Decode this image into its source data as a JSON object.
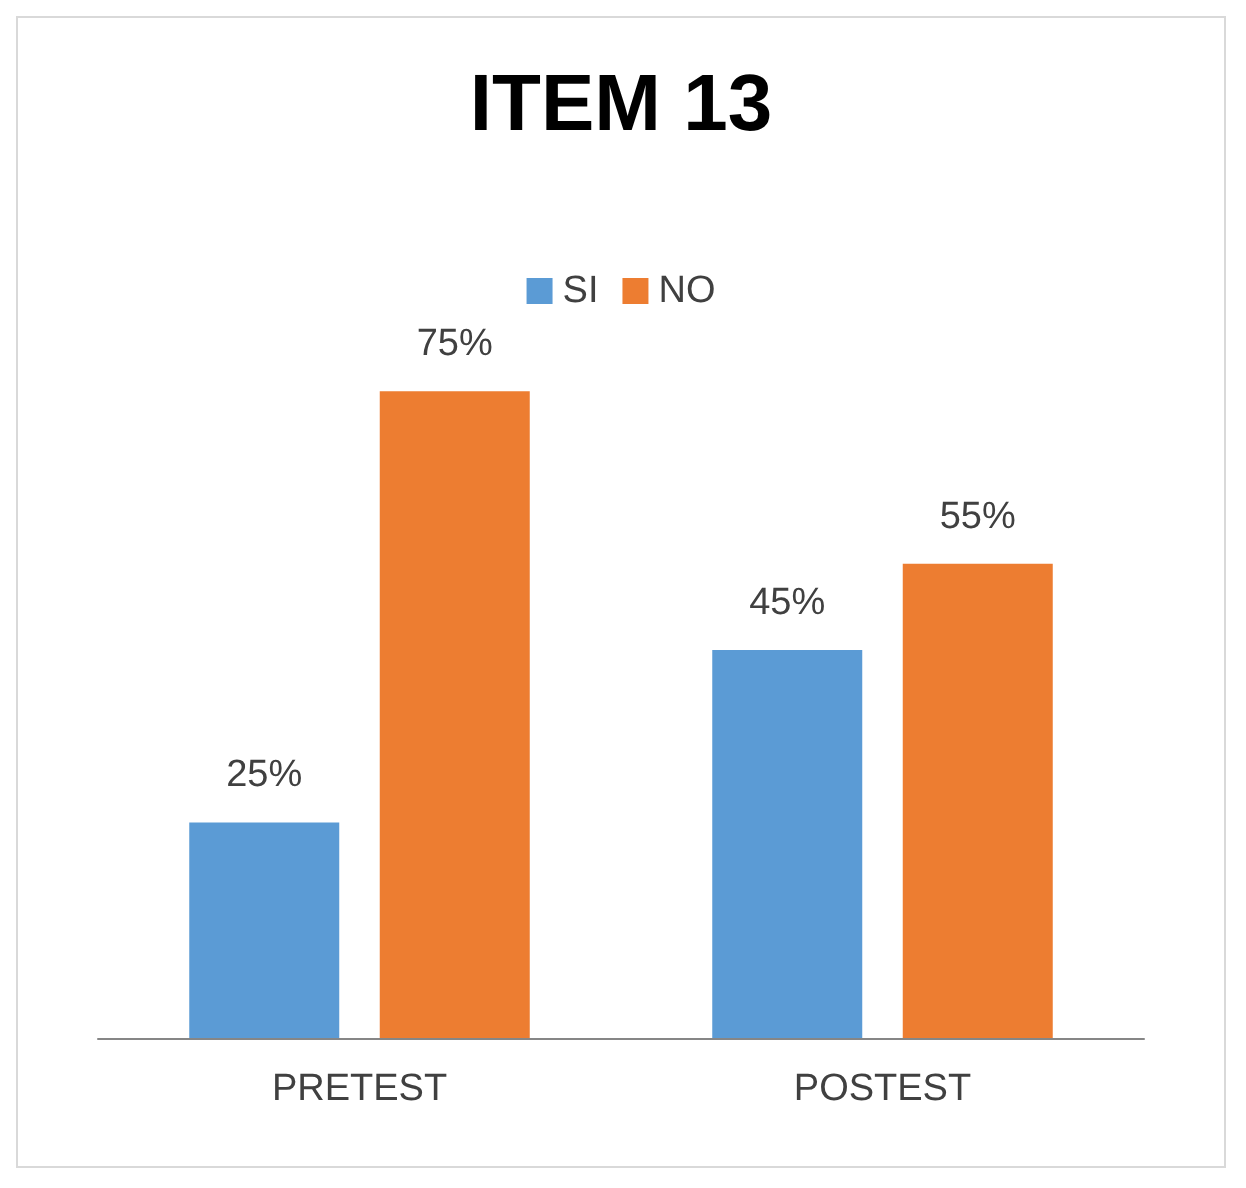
{
  "chart_data": {
    "type": "bar",
    "title": "ITEM 13",
    "categories": [
      "PRETEST",
      "POSTEST"
    ],
    "series": [
      {
        "name": "SI",
        "color": "#5b9bd5",
        "values": [
          25,
          45
        ],
        "value_labels": [
          "25%",
          "45%"
        ]
      },
      {
        "name": "NO",
        "color": "#ed7d31",
        "values": [
          75,
          55
        ],
        "value_labels": [
          "75%",
          "55%"
        ]
      }
    ],
    "legend": "top"
  }
}
